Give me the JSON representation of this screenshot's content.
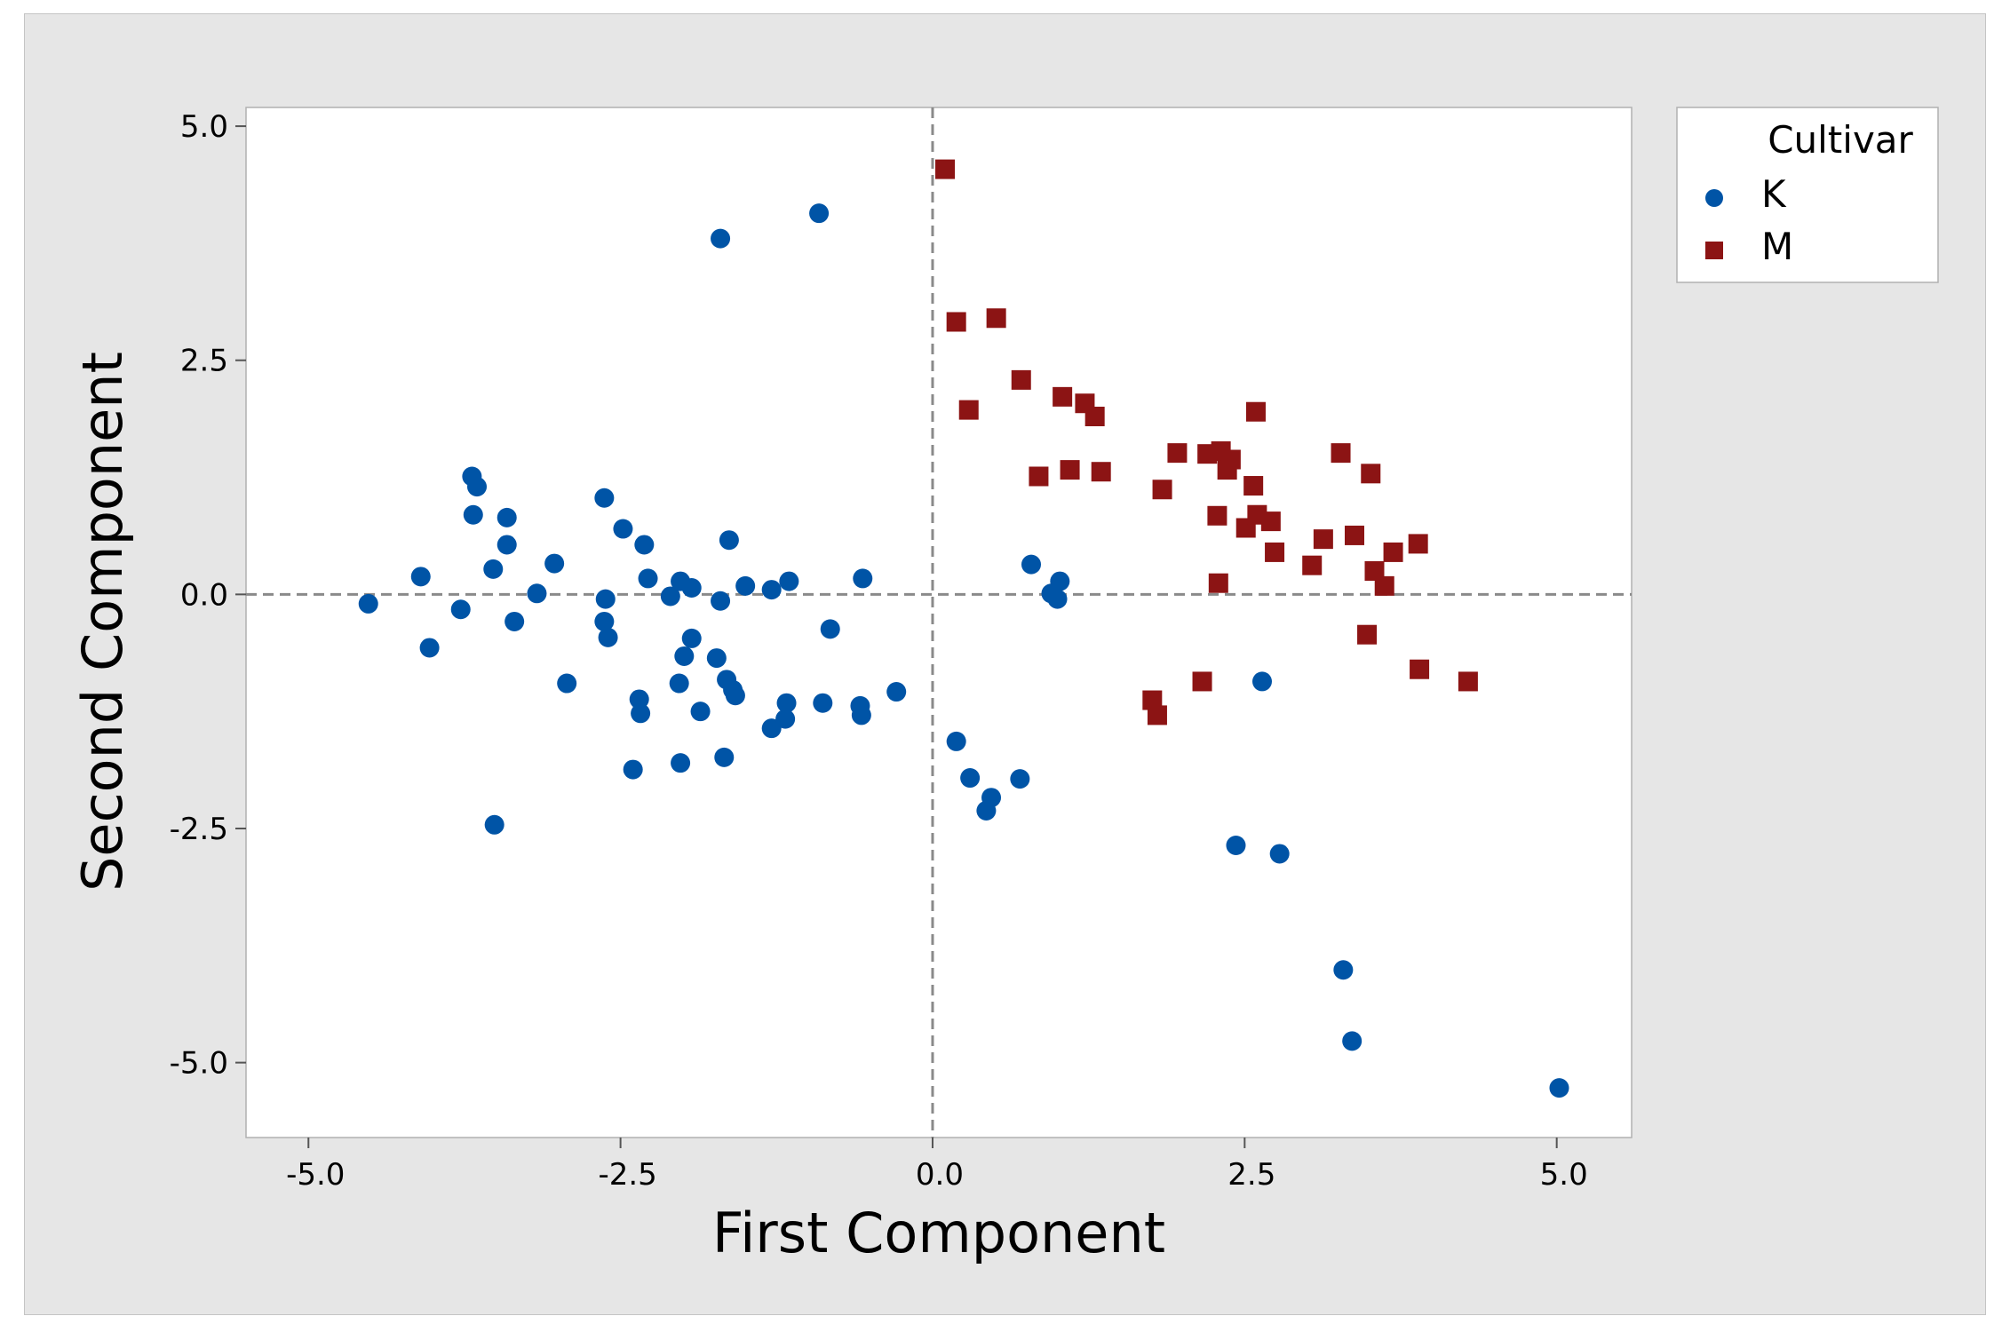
{
  "chart_data": {
    "type": "scatter",
    "xlabel": "First Component",
    "ylabel": "Second Component",
    "xlim": [
      -5.5,
      5.6
    ],
    "ylim": [
      -5.8,
      5.2
    ],
    "xticks": [
      -5.0,
      -2.5,
      0.0,
      2.5,
      5.0
    ],
    "yticks": [
      5.0,
      2.5,
      0.0,
      -2.5,
      -5.0
    ],
    "xtick_labels": [
      "-5.0",
      "-2.5",
      "0.0",
      "2.5",
      "5.0"
    ],
    "ytick_labels": [
      "5.0",
      "2.5",
      "0.0",
      "-2.5",
      "-5.0"
    ],
    "reference_lines": {
      "x": 0.0,
      "y": 0.0,
      "style": "dashed"
    },
    "grid": false,
    "legend": {
      "title": "Cultivar",
      "position": "right"
    },
    "series": [
      {
        "name": "K",
        "marker": "circle",
        "color": "#0054a6",
        "points": [
          [
            -4.52,
            -0.1
          ],
          [
            -4.1,
            0.19
          ],
          [
            -4.03,
            -0.57
          ],
          [
            -3.78,
            -0.16
          ],
          [
            -3.69,
            1.26
          ],
          [
            -3.65,
            1.15
          ],
          [
            -3.68,
            0.85
          ],
          [
            -3.52,
            0.27
          ],
          [
            -3.51,
            -2.46
          ],
          [
            -3.41,
            0.82
          ],
          [
            -3.41,
            0.53
          ],
          [
            -3.35,
            -0.29
          ],
          [
            -3.17,
            0.01
          ],
          [
            -3.03,
            0.33
          ],
          [
            -2.93,
            -0.95
          ],
          [
            -2.63,
            1.03
          ],
          [
            -2.63,
            -0.29
          ],
          [
            -2.62,
            -0.05
          ],
          [
            -2.6,
            -0.46
          ],
          [
            -2.48,
            0.7
          ],
          [
            -2.4,
            -1.87
          ],
          [
            -2.35,
            -1.12
          ],
          [
            -2.34,
            -1.27
          ],
          [
            -2.31,
            0.53
          ],
          [
            -2.28,
            0.17
          ],
          [
            -2.1,
            -0.02
          ],
          [
            -2.03,
            -0.95
          ],
          [
            -2.02,
            0.14
          ],
          [
            -2.02,
            -1.8
          ],
          [
            -1.99,
            -0.66
          ],
          [
            -1.93,
            0.07
          ],
          [
            -1.93,
            -0.47
          ],
          [
            -1.86,
            -1.25
          ],
          [
            -1.73,
            -0.68
          ],
          [
            -1.7,
            3.8
          ],
          [
            -1.7,
            -0.07
          ],
          [
            -1.67,
            -1.74
          ],
          [
            -1.65,
            -0.91
          ],
          [
            -1.63,
            0.58
          ],
          [
            -1.6,
            -1.02
          ],
          [
            -1.58,
            -1.08
          ],
          [
            -1.5,
            0.09
          ],
          [
            -1.29,
            -1.43
          ],
          [
            -1.29,
            0.05
          ],
          [
            -1.18,
            -1.33
          ],
          [
            -1.17,
            -1.16
          ],
          [
            -1.15,
            0.14
          ],
          [
            -0.91,
            4.07
          ],
          [
            -0.88,
            -1.16
          ],
          [
            -0.82,
            -0.37
          ],
          [
            -0.58,
            -1.19
          ],
          [
            -0.57,
            -1.29
          ],
          [
            -0.56,
            0.17
          ],
          [
            -0.29,
            -1.04
          ],
          [
            0.19,
            -1.57
          ],
          [
            0.3,
            -1.96
          ],
          [
            0.43,
            -2.31
          ],
          [
            0.47,
            -2.17
          ],
          [
            0.7,
            -1.97
          ],
          [
            0.79,
            0.32
          ],
          [
            0.95,
            0.01
          ],
          [
            1.0,
            -0.05
          ],
          [
            1.02,
            0.14
          ],
          [
            2.43,
            -2.68
          ],
          [
            2.64,
            -0.93
          ],
          [
            2.78,
            -2.77
          ],
          [
            3.29,
            -4.01
          ],
          [
            3.36,
            -4.77
          ],
          [
            5.02,
            -5.27
          ]
        ]
      },
      {
        "name": "M",
        "marker": "square",
        "color": "#8c1414",
        "points": [
          [
            0.1,
            4.54
          ],
          [
            0.19,
            2.91
          ],
          [
            0.29,
            1.97
          ],
          [
            0.51,
            2.95
          ],
          [
            0.71,
            2.29
          ],
          [
            0.85,
            1.26
          ],
          [
            1.04,
            2.11
          ],
          [
            1.1,
            1.33
          ],
          [
            1.22,
            2.04
          ],
          [
            1.3,
            1.9
          ],
          [
            1.35,
            1.31
          ],
          [
            1.76,
            -1.13
          ],
          [
            1.8,
            -1.29
          ],
          [
            1.84,
            1.12
          ],
          [
            1.96,
            1.51
          ],
          [
            2.16,
            -0.93
          ],
          [
            2.2,
            1.5
          ],
          [
            2.28,
            0.84
          ],
          [
            2.29,
            0.12
          ],
          [
            2.31,
            1.53
          ],
          [
            2.36,
            1.33
          ],
          [
            2.39,
            1.44
          ],
          [
            2.51,
            0.71
          ],
          [
            2.57,
            1.16
          ],
          [
            2.59,
            1.95
          ],
          [
            2.6,
            0.85
          ],
          [
            2.71,
            0.78
          ],
          [
            2.74,
            0.45
          ],
          [
            3.04,
            0.31
          ],
          [
            3.13,
            0.59
          ],
          [
            3.27,
            1.51
          ],
          [
            3.38,
            0.63
          ],
          [
            3.48,
            -0.43
          ],
          [
            3.51,
            1.29
          ],
          [
            3.54,
            0.25
          ],
          [
            3.62,
            0.09
          ],
          [
            3.69,
            0.45
          ],
          [
            3.89,
            0.54
          ],
          [
            3.9,
            -0.8
          ],
          [
            4.29,
            -0.93
          ]
        ]
      }
    ]
  }
}
